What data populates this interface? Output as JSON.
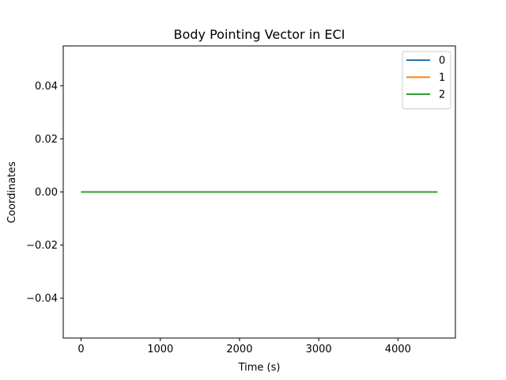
{
  "chart_data": {
    "type": "line",
    "title": "Body Pointing Vector in ECI",
    "xlabel": "Time (s)",
    "ylabel": "Coordinates",
    "xlim": [
      -225,
      4725
    ],
    "ylim": [
      -0.055,
      0.055
    ],
    "xticks": [
      0,
      1000,
      2000,
      3000,
      4000
    ],
    "xtick_labels": [
      "0",
      "1000",
      "2000",
      "3000",
      "4000"
    ],
    "yticks": [
      -0.04,
      -0.02,
      0.0,
      0.02,
      0.04
    ],
    "ytick_labels": [
      "−0.04",
      "−0.02",
      "0.00",
      "0.02",
      "0.04"
    ],
    "grid": false,
    "legend_position": "top-right",
    "series": [
      {
        "name": "0",
        "color": "#1f77b4",
        "x": [
          0,
          4500
        ],
        "y": [
          0,
          0
        ]
      },
      {
        "name": "1",
        "color": "#ff7f0e",
        "x": [
          0,
          4500
        ],
        "y": [
          0,
          0
        ]
      },
      {
        "name": "2",
        "color": "#2ca02c",
        "x": [
          0,
          4500
        ],
        "y": [
          0,
          0
        ]
      }
    ]
  }
}
